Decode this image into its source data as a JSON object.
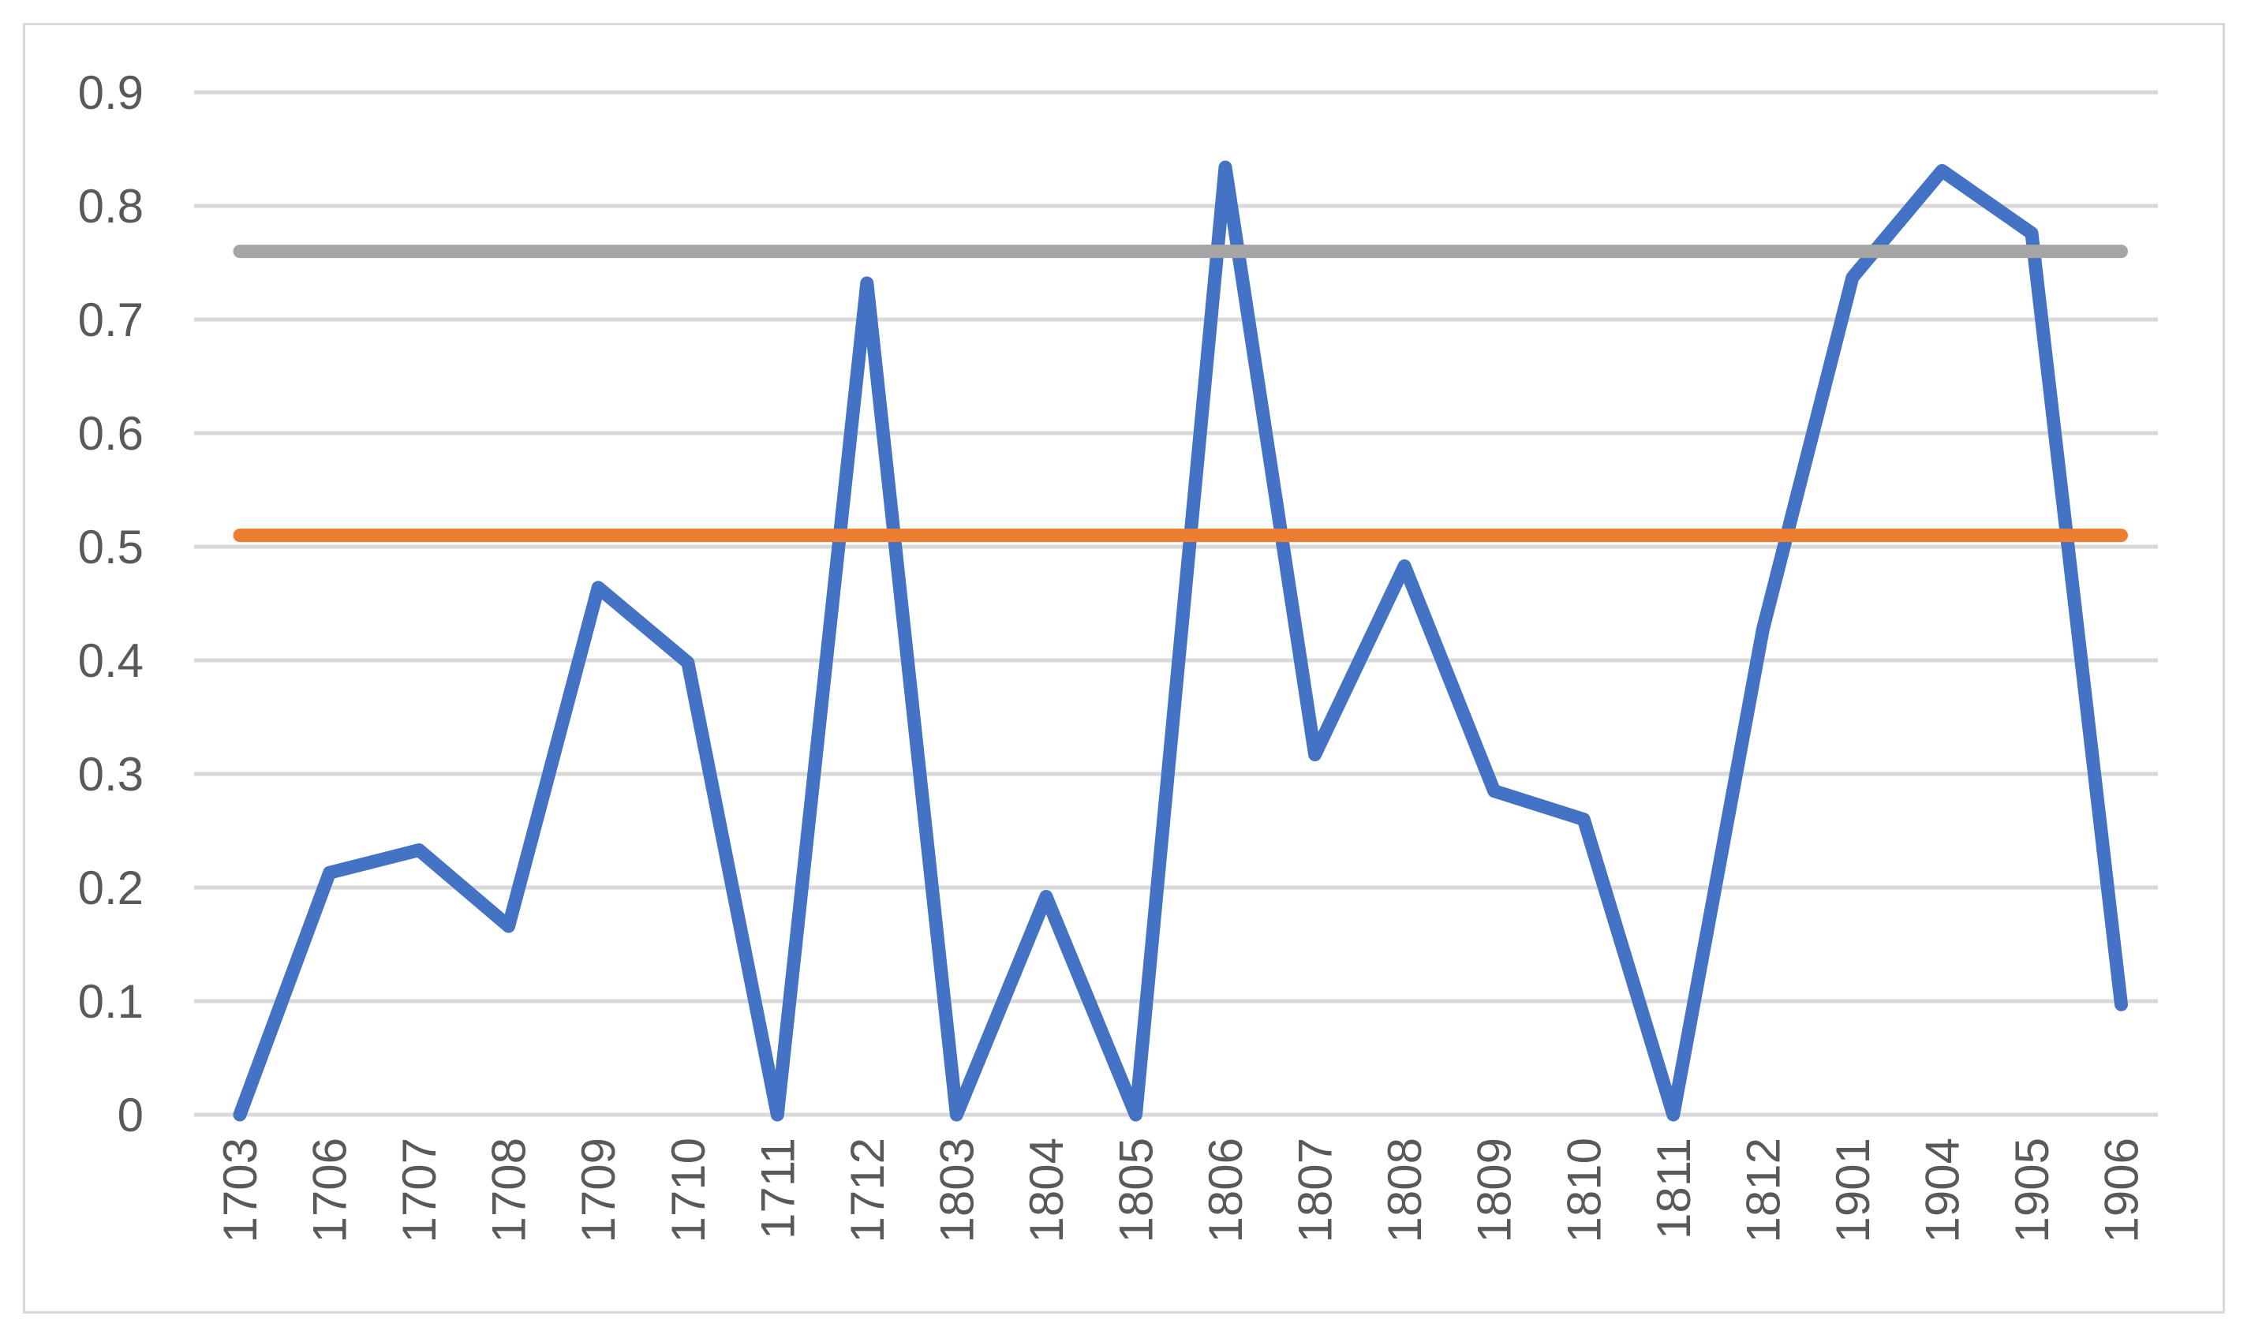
{
  "chart_data": {
    "type": "line",
    "title": "",
    "xlabel": "",
    "ylabel": "",
    "categories": [
      "1703",
      "1706",
      "1707",
      "1708",
      "1709",
      "1710",
      "1711",
      "1712",
      "1803",
      "1804",
      "1805",
      "1806",
      "1807",
      "1808",
      "1809",
      "1810",
      "1811",
      "1812",
      "1901",
      "1904",
      "1905",
      "1906"
    ],
    "ylim": [
      0,
      0.9
    ],
    "yticks": [
      "0",
      "0.1",
      "0.2",
      "0.3",
      "0.4",
      "0.5",
      "0.6",
      "0.7",
      "0.8",
      "0.9"
    ],
    "grid": true,
    "legend": "none",
    "x_tick_rotation": "vertical",
    "series": [
      {
        "color": "#4472c4",
        "values": [
          0,
          0.213,
          0.233,
          0.166,
          0.464,
          0.398,
          0,
          0.732,
          0,
          0.192,
          0,
          0.834,
          0.317,
          0.483,
          0.285,
          0.26,
          0,
          0.427,
          0.737,
          0.831,
          0.776,
          0.097
        ]
      },
      {
        "color": "#ed7d31",
        "values": [
          0.51,
          0.51,
          0.51,
          0.51,
          0.51,
          0.51,
          0.51,
          0.51,
          0.51,
          0.51,
          0.51,
          0.51,
          0.51,
          0.51,
          0.51,
          0.51,
          0.51,
          0.51,
          0.51,
          0.51,
          0.51,
          0.51
        ]
      },
      {
        "color": "#a5a5a5",
        "values": [
          0.76,
          0.76,
          0.76,
          0.76,
          0.76,
          0.76,
          0.76,
          0.76,
          0.76,
          0.76,
          0.76,
          0.76,
          0.76,
          0.76,
          0.76,
          0.76,
          0.76,
          0.76,
          0.76,
          0.76,
          0.76,
          0.76
        ]
      }
    ],
    "colors": {
      "gridline": "#d9d9d9",
      "tick_text": "#595959",
      "frame": "#d9d9d9"
    }
  }
}
